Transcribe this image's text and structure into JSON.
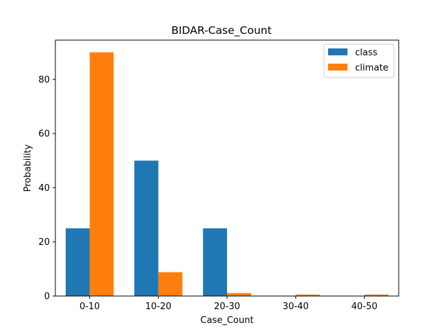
{
  "chart_data": {
    "type": "bar",
    "title": "BIDAR-Case_Count",
    "xlabel": "Case_Count",
    "ylabel": "Probability",
    "categories": [
      "0-10",
      "10-20",
      "20-30",
      "30-40",
      "40-50"
    ],
    "series": [
      {
        "name": "class",
        "values": [
          25,
          50,
          25,
          0,
          0
        ],
        "color": "#1f77b4"
      },
      {
        "name": "climate",
        "values": [
          90,
          8.8,
          1.1,
          0.55,
          0.55
        ],
        "color": "#ff7f0e"
      }
    ],
    "ylim": [
      0,
      94.5
    ],
    "yticks": [
      0,
      20,
      40,
      60,
      80
    ],
    "grid": false,
    "legend_position": "top-right"
  }
}
